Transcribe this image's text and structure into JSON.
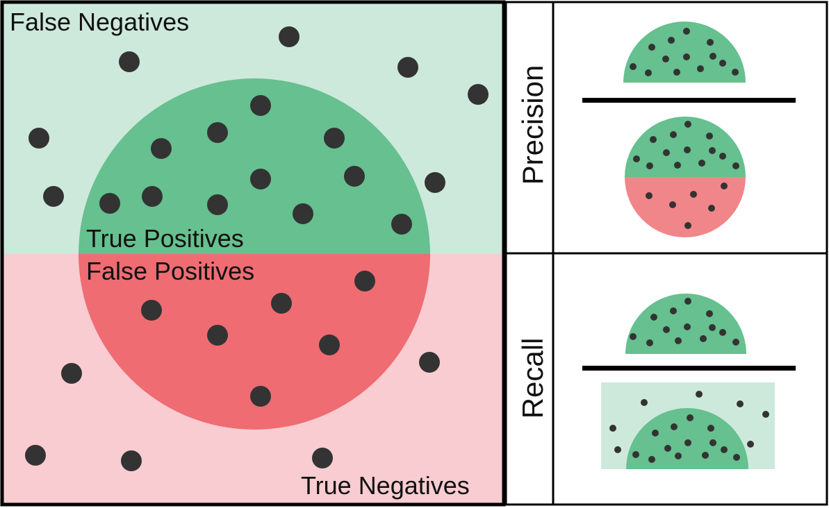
{
  "labels": {
    "false_negatives": "False Negatives",
    "true_positives": "True Positives",
    "false_positives": "False Positives",
    "true_negatives": "True Negatives",
    "precision": "Precision",
    "recall": "Recall"
  },
  "colors": {
    "relevant_region": "#cde9db",
    "irrelevant_region": "#f8ccd0",
    "true_positive_fill": "#66c08f",
    "false_positive_fill": "#ef6c73",
    "precision_false_positive_fill": "#f08689",
    "dot": "#333333",
    "frame": "#000000"
  }
}
